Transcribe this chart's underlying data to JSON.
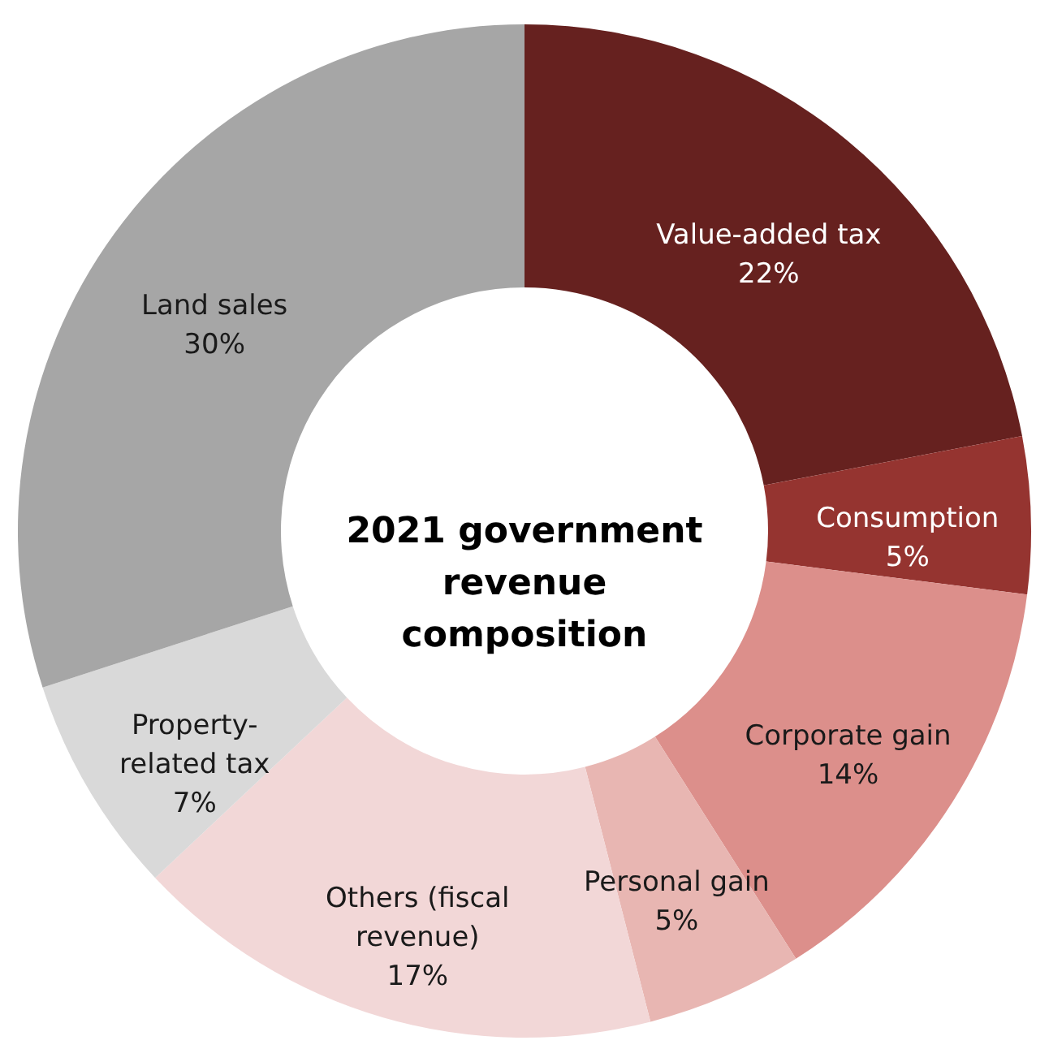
{
  "chart_data": {
    "type": "donut",
    "title": "2021 government revenue composition",
    "categories": [
      "Value-added tax",
      "Consumption",
      "Corporate gain",
      "Personal gain",
      "Others (fiscal revenue)",
      "Property-related tax",
      "Land sales"
    ],
    "values": [
      22,
      5,
      14,
      5,
      17,
      7,
      30
    ],
    "value_labels": [
      "22%",
      "5%",
      "14%",
      "5%",
      "17%",
      "7%",
      "30%"
    ],
    "colors": [
      "#66211f",
      "#953430",
      "#dc8f8b",
      "#e8b6b2",
      "#f2d7d7",
      "#d9d9d9",
      "#a6a6a6"
    ]
  }
}
